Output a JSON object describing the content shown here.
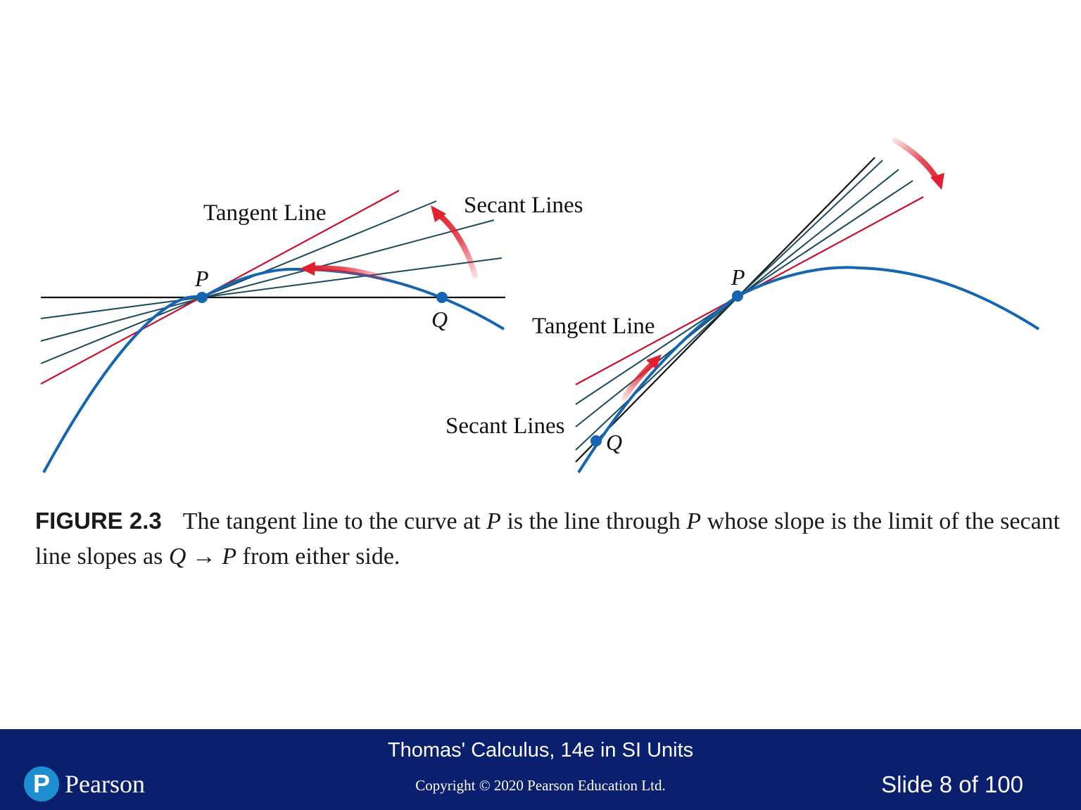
{
  "figure": {
    "left": {
      "tangent_label": "Tangent Line",
      "secant_label": "Secant Lines",
      "point_p": "P",
      "point_q": "Q"
    },
    "right": {
      "tangent_label": "Tangent Line",
      "secant_label": "Secant Lines",
      "point_p": "P",
      "point_q": "Q"
    },
    "colors": {
      "curve": "#1565b0",
      "tangent": "#c8102e",
      "secant": "#1b4a5c",
      "arrow": "#e0202e",
      "point": "#1565b0"
    }
  },
  "caption": {
    "figure_number": "FIGURE 2.3",
    "text_1": "The tangent line to the curve at ",
    "p1": "P",
    "text_2": " is the line through ",
    "p2": "P",
    "text_3": " whose slope is the limit of the secant line slopes as ",
    "q": "Q",
    "arrow": " → ",
    "p3": "P",
    "text_4": " from either side."
  },
  "footer": {
    "book_title": "Thomas' Calculus, 14e in SI Units",
    "copyright": "Copyright © 2020 Pearson Education Ltd.",
    "slide_number": "Slide 8 of 100",
    "logo_mark": "P",
    "logo_text": "Pearson"
  }
}
